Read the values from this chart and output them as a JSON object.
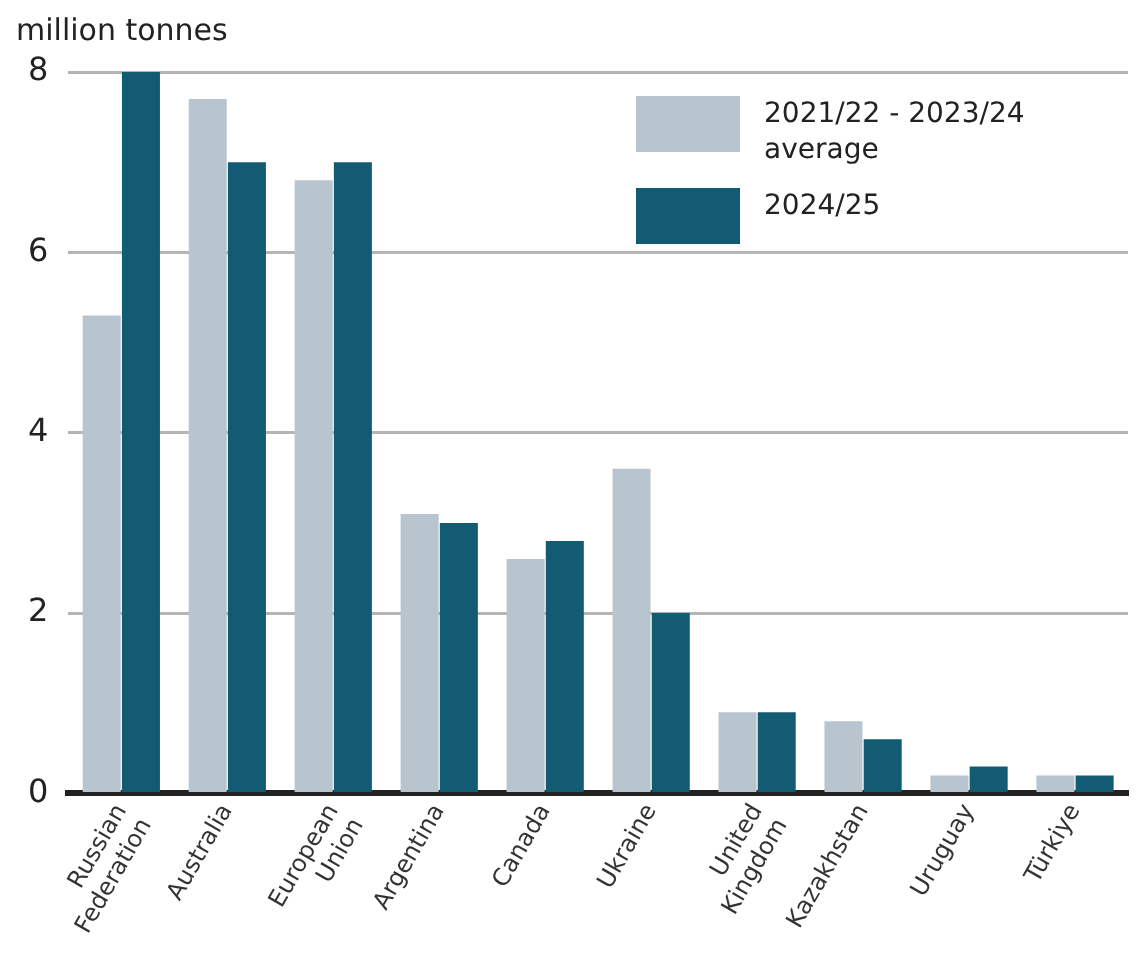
{
  "chart_data": {
    "type": "bar",
    "ylabel": "million tonnes",
    "categories": [
      "Russian Federation",
      "Australia",
      "European Union",
      "Argentina",
      "Canada",
      "Ukraine",
      "United Kingdom",
      "Kazakhstan",
      "Uruguay",
      "Türkiye"
    ],
    "series": [
      {
        "name": "2021/22 - 2023/24 average",
        "color": "#b8c5ce",
        "values": [
          5.3,
          7.7,
          6.8,
          3.1,
          2.6,
          3.6,
          0.9,
          0.8,
          0.2,
          0.2
        ]
      },
      {
        "name": "2024/25",
        "color": "#135b73",
        "values": [
          8.0,
          7.0,
          7.0,
          3.0,
          2.8,
          2.0,
          0.9,
          0.6,
          0.3,
          0.2
        ]
      }
    ],
    "ylim": [
      0,
      8
    ],
    "yticks": [
      0,
      2,
      4,
      6,
      8
    ],
    "grid": "y",
    "legend": "top right"
  }
}
